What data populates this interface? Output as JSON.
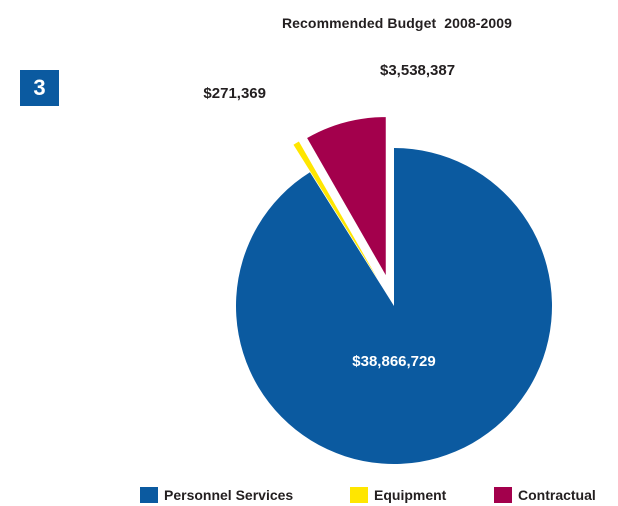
{
  "page_number": "3",
  "colors": {
    "badge": "#0b5aa0",
    "personnel": "#0b5aa0",
    "equipment": "#ffe600",
    "contractual": "#a3004c",
    "text": "#231f20"
  },
  "chart_data": {
    "type": "pie",
    "title": "Recommended Budget  2008-2009",
    "slices": [
      {
        "name": "Personnel Services",
        "value": 38866729,
        "label": "$38,866,729",
        "color": "#0b5aa0",
        "exploded": false
      },
      {
        "name": "Equipment",
        "value": 271369,
        "label": "$271,369",
        "color": "#ffe600",
        "exploded": true
      },
      {
        "name": "Contractual",
        "value": 3538387,
        "label": "$3,538,387",
        "color": "#a3004c",
        "exploded": true
      }
    ],
    "legend_position": "bottom"
  }
}
